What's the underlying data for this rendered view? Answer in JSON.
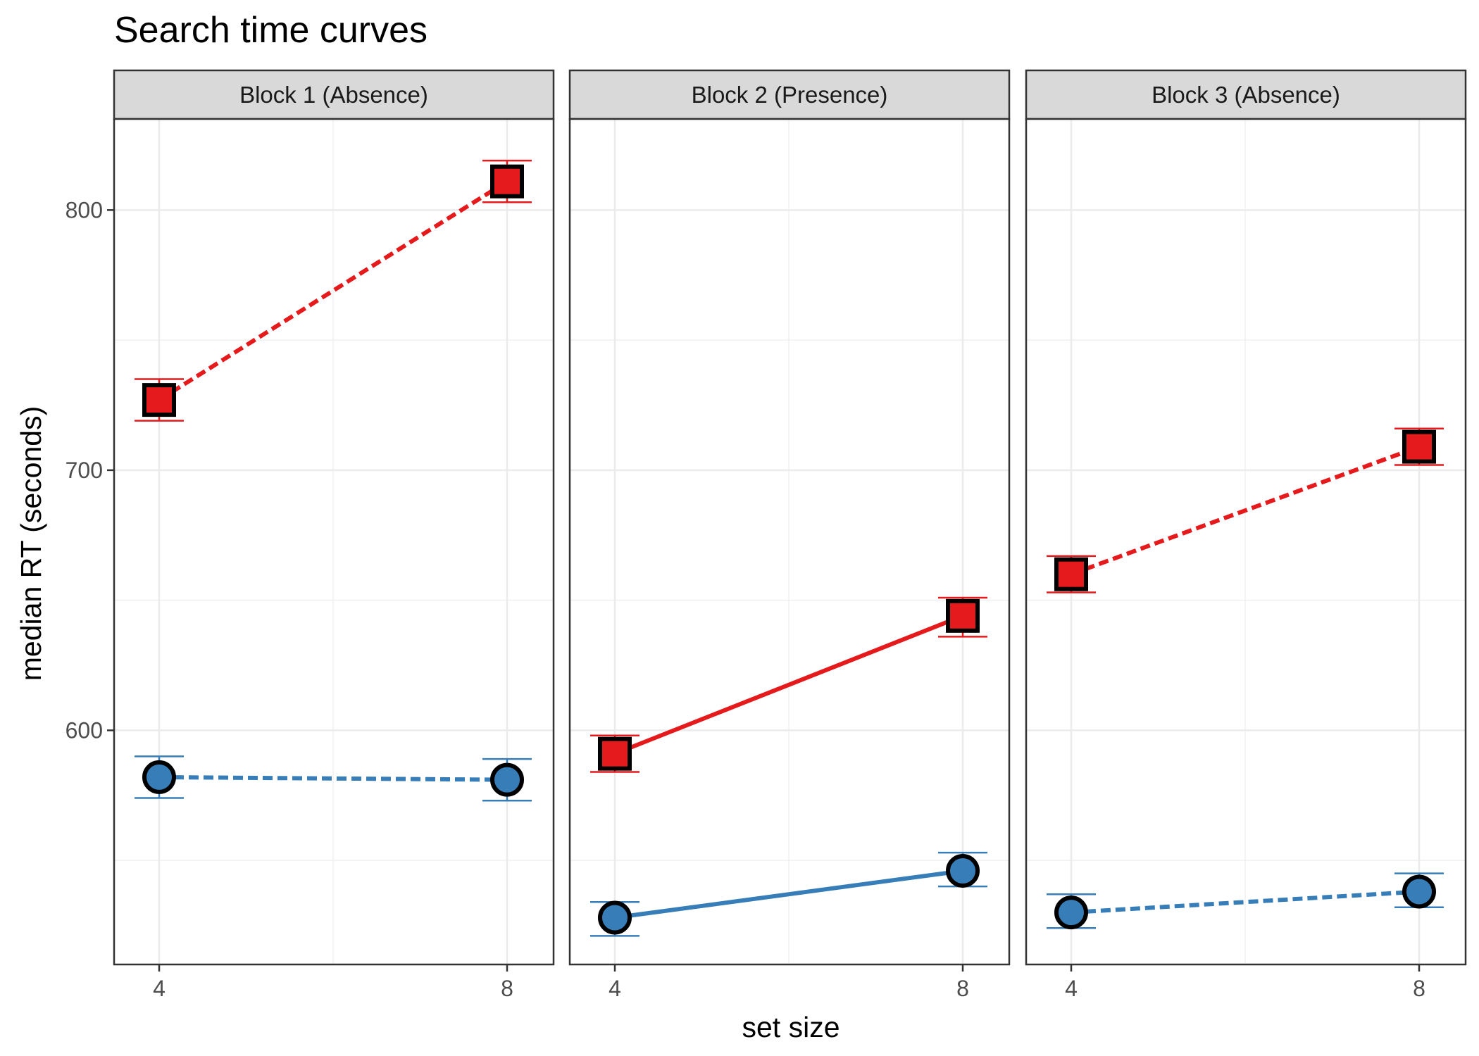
{
  "chart_data": {
    "type": "line",
    "title": "Search time curves",
    "xlabel": "set size",
    "ylabel": "median RT (seconds)",
    "x_ticks": [
      4,
      8
    ],
    "y_ticks": [
      600,
      700,
      800
    ],
    "ylim": [
      510,
      835
    ],
    "grid": true,
    "legend": "none",
    "colors": {
      "red": "#E41A1C",
      "blue": "#377EB8"
    },
    "panels": [
      {
        "label": "Block 1 (Absence)",
        "series": [
          {
            "color": "#E41A1C",
            "marker": "square",
            "linestyle": "dashed",
            "x": [
              4,
              8
            ],
            "y": [
              727,
              811
            ],
            "ymin": [
              719,
              803
            ],
            "ymax": [
              735,
              819
            ]
          },
          {
            "color": "#377EB8",
            "marker": "circle",
            "linestyle": "dashed",
            "x": [
              4,
              8
            ],
            "y": [
              582,
              581
            ],
            "ymin": [
              574,
              573
            ],
            "ymax": [
              590,
              589
            ]
          }
        ]
      },
      {
        "label": "Block 2 (Presence)",
        "series": [
          {
            "color": "#E41A1C",
            "marker": "square",
            "linestyle": "solid",
            "x": [
              4,
              8
            ],
            "y": [
              591,
              644
            ],
            "ymin": [
              584,
              636
            ],
            "ymax": [
              598,
              651
            ]
          },
          {
            "color": "#377EB8",
            "marker": "circle",
            "linestyle": "solid",
            "x": [
              4,
              8
            ],
            "y": [
              528,
              546
            ],
            "ymin": [
              521,
              540
            ],
            "ymax": [
              534,
              553
            ]
          }
        ]
      },
      {
        "label": "Block 3 (Absence)",
        "series": [
          {
            "color": "#E41A1C",
            "marker": "square",
            "linestyle": "dashed",
            "x": [
              4,
              8
            ],
            "y": [
              660,
              709
            ],
            "ymin": [
              653,
              702
            ],
            "ymax": [
              667,
              716
            ]
          },
          {
            "color": "#377EB8",
            "marker": "circle",
            "linestyle": "dashed",
            "x": [
              4,
              8
            ],
            "y": [
              530,
              538
            ],
            "ymin": [
              524,
              532
            ],
            "ymax": [
              537,
              545
            ]
          }
        ]
      }
    ]
  }
}
